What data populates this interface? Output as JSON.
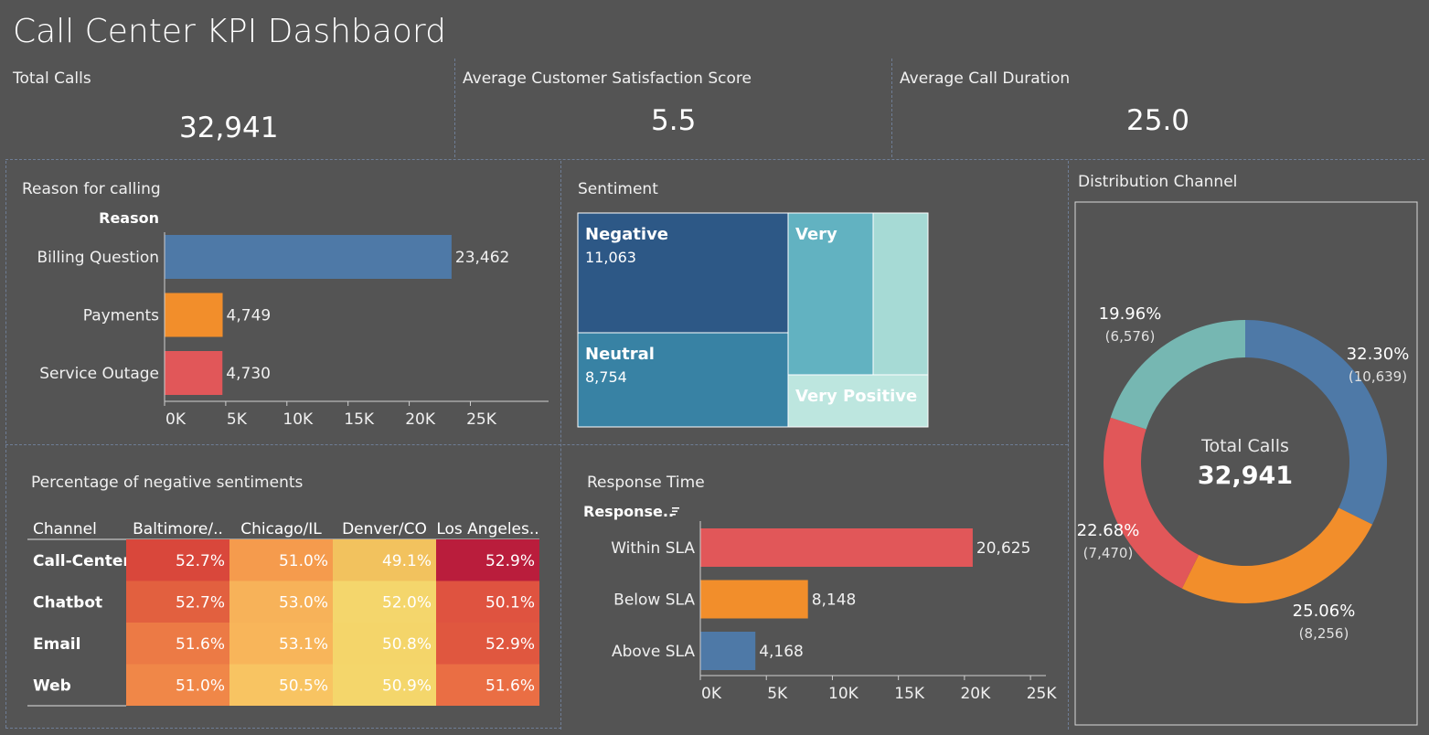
{
  "title": "Call Center KPI Dashbaord",
  "kpis": {
    "total_calls": {
      "label": "Total Calls",
      "value": "32,941"
    },
    "avg_csat": {
      "label": "Average Customer Satisfaction Score",
      "value": "5.5"
    },
    "avg_duration": {
      "label": "Average Call Duration",
      "value": "25.0"
    }
  },
  "reason": {
    "title": "Reason for calling",
    "column_header": "Reason"
  },
  "sentiment": {
    "title": "Sentiment"
  },
  "distribution": {
    "title": "Distribution Channel",
    "center_label": "Total Calls",
    "center_value": "32,941"
  },
  "negative_pct": {
    "title": "Percentage of negative sentiments"
  },
  "response": {
    "title": "Response Time",
    "column_header": "Response.."
  },
  "colors": {
    "background": "#545454",
    "blue": "#4e79a7",
    "orange": "#f28e2b",
    "red": "#e15759",
    "teal": "#76b7b2"
  },
  "chart_data": [
    {
      "id": "reason",
      "type": "bar",
      "orientation": "horizontal",
      "title": "Reason for calling",
      "categories": [
        "Billing Question",
        "Payments",
        "Service Outage"
      ],
      "values": [
        23462,
        4749,
        4730
      ],
      "value_labels": [
        "23,462",
        "4,749",
        "4,730"
      ],
      "colors": [
        "#4e79a7",
        "#f28e2b",
        "#e15759"
      ],
      "xticks": [
        "0K",
        "5K",
        "10K",
        "15K",
        "20K",
        "25K"
      ],
      "xlim": [
        0,
        29000
      ],
      "grid": false
    },
    {
      "id": "sentiment",
      "type": "treemap",
      "title": "Sentiment",
      "items": [
        {
          "name": "Negative",
          "value": 11063,
          "label": "11,063",
          "color": "#2d5886"
        },
        {
          "name": "Neutral",
          "value": 8754,
          "label": "8,754",
          "color": "#3882a4"
        },
        {
          "name": "Very",
          "value": null,
          "label": "",
          "color": "#62b2c1"
        },
        {
          "name": "",
          "value": null,
          "label": "",
          "color": "#a6dad5"
        },
        {
          "name": "Very Positive",
          "value": null,
          "label": "",
          "color": "#bde6df"
        }
      ]
    },
    {
      "id": "distribution",
      "type": "pie",
      "donut": true,
      "title": "Distribution Channel",
      "slices": [
        {
          "pct": 32.3,
          "pct_label": "32.30%",
          "value": 10639,
          "value_label": "(10,639)",
          "color": "#4e79a7"
        },
        {
          "pct": 25.06,
          "pct_label": "25.06%",
          "value": 8256,
          "value_label": "(8,256)",
          "color": "#f28e2b"
        },
        {
          "pct": 22.68,
          "pct_label": "22.68%",
          "value": 7470,
          "value_label": "(7,470)",
          "color": "#e15759"
        },
        {
          "pct": 19.96,
          "pct_label": "19.96%",
          "value": 6576,
          "value_label": "(6,576)",
          "color": "#76b7b2"
        }
      ]
    },
    {
      "id": "negative_pct",
      "type": "heatmap",
      "title": "Percentage of negative sentiments",
      "row_header": "Channel",
      "columns": [
        "Baltimore/..",
        "Chicago/IL",
        "Denver/CO",
        "Los Angeles.."
      ],
      "rows": [
        "Call-Center",
        "Chatbot",
        "Email",
        "Web"
      ],
      "values": [
        [
          52.7,
          51.0,
          49.1,
          52.9
        ],
        [
          52.7,
          53.0,
          52.0,
          50.1
        ],
        [
          51.6,
          53.1,
          50.8,
          52.9
        ],
        [
          51.0,
          50.5,
          50.9,
          51.6
        ]
      ],
      "labels": [
        [
          "52.7%",
          "51.0%",
          "49.1%",
          "52.9%"
        ],
        [
          "52.7%",
          "53.0%",
          "52.0%",
          "50.1%"
        ],
        [
          "51.6%",
          "53.1%",
          "50.8%",
          "52.9%"
        ],
        [
          "51.0%",
          "50.5%",
          "50.9%",
          "51.6%"
        ]
      ],
      "cell_colors": [
        [
          "#d9473b",
          "#f59b4d",
          "#f2c25e",
          "#ba1d3c"
        ],
        [
          "#e2603f",
          "#f7b259",
          "#f4d66c",
          "#df5340"
        ],
        [
          "#ec7a45",
          "#f8b55a",
          "#f4d56a",
          "#e0573f"
        ],
        [
          "#f08748",
          "#f8c462",
          "#f4d66b",
          "#ea6e44"
        ]
      ]
    },
    {
      "id": "response",
      "type": "bar",
      "orientation": "horizontal",
      "title": "Response Time",
      "categories": [
        "Within SLA",
        "Below SLA",
        "Above SLA"
      ],
      "values": [
        20625,
        8148,
        4168
      ],
      "value_labels": [
        "20,625",
        "8,148",
        "4,168"
      ],
      "colors": [
        "#e15759",
        "#f28e2b",
        "#4e79a7"
      ],
      "xticks": [
        "0K",
        "5K",
        "10K",
        "15K",
        "20K",
        "25K"
      ],
      "xlim": [
        0,
        27000
      ],
      "grid": false
    }
  ]
}
